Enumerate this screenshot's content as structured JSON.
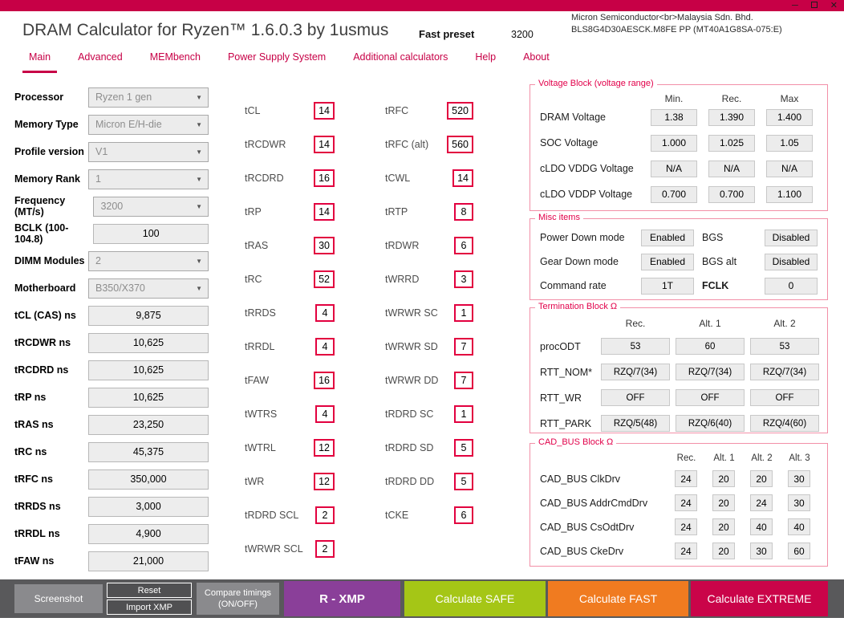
{
  "colors": {
    "accent": "#c70046",
    "timing_border": "#e2003f",
    "xmp_purple": "#8a3f99",
    "safe_green": "#a5c616",
    "fast_orange": "#f07b20",
    "extreme_crimson": "#ca0449"
  },
  "window": {
    "title": "DRAM Calculator for Ryzen™ 1.6.0.3 by 1usmus",
    "preset_label": "Fast preset",
    "preset_freq": "3200",
    "mem_line1": "Micron Semiconductor<br>Malaysia Sdn. Bhd.",
    "mem_line2": "BLS8G4D30AESCK.M8FE PP (MT40A1G8SA-075:E)"
  },
  "nav": {
    "items": [
      {
        "label": "Main"
      },
      {
        "label": "Advanced"
      },
      {
        "label": "MEMbench"
      },
      {
        "label": "Power Supply System"
      },
      {
        "label": "Additional calculators"
      },
      {
        "label": "Help"
      },
      {
        "label": "About"
      }
    ]
  },
  "left": {
    "rows": [
      {
        "label": "Processor",
        "value": "Ryzen 1 gen"
      },
      {
        "label": "Memory Type",
        "value": "Micron E/H-die"
      },
      {
        "label": "Profile version",
        "value": "V1"
      },
      {
        "label": "Memory Rank",
        "value": "1"
      },
      {
        "label": "Frequency (MT/s)",
        "value": "3200"
      },
      {
        "label": "BCLK (100-104.8)",
        "value": "100"
      },
      {
        "label": "DIMM Modules",
        "value": "2"
      },
      {
        "label": "Motherboard",
        "value": "B350/X370"
      },
      {
        "label": "tCL (CAS) ns",
        "value": "9,875"
      },
      {
        "label": "tRCDWR ns",
        "value": "10,625"
      },
      {
        "label": "tRCDRD ns",
        "value": "10,625"
      },
      {
        "label": "tRP ns",
        "value": "10,625"
      },
      {
        "label": "tRAS ns",
        "value": "23,250"
      },
      {
        "label": "tRC ns",
        "value": "45,375"
      },
      {
        "label": "tRFC ns",
        "value": "350,000"
      },
      {
        "label": "tRRDS ns",
        "value": "3,000"
      },
      {
        "label": "tRRDL ns",
        "value": "4,900"
      },
      {
        "label": "tFAW ns",
        "value": "21,000"
      }
    ]
  },
  "timings1": [
    {
      "label": "tCL",
      "value": "14"
    },
    {
      "label": "tRCDWR",
      "value": "14"
    },
    {
      "label": "tRCDRD",
      "value": "16"
    },
    {
      "label": "tRP",
      "value": "14"
    },
    {
      "label": "tRAS",
      "value": "30"
    },
    {
      "label": "tRC",
      "value": "52"
    },
    {
      "label": "tRRDS",
      "value": "4"
    },
    {
      "label": "tRRDL",
      "value": "4"
    },
    {
      "label": "tFAW",
      "value": "16"
    },
    {
      "label": "tWTRS",
      "value": "4"
    },
    {
      "label": "tWTRL",
      "value": "12"
    },
    {
      "label": "tWR",
      "value": "12"
    },
    {
      "label": "tRDRD SCL",
      "value": "2"
    },
    {
      "label": "tWRWR SCL",
      "value": "2"
    }
  ],
  "timings2": [
    {
      "label": "tRFC",
      "value": "520"
    },
    {
      "label": "tRFC (alt)",
      "value": "560"
    },
    {
      "label": "tCWL",
      "value": "14"
    },
    {
      "label": "tRTP",
      "value": "8"
    },
    {
      "label": "tRDWR",
      "value": "6"
    },
    {
      "label": "tWRRD",
      "value": "3"
    },
    {
      "label": "tWRWR SC",
      "value": "1"
    },
    {
      "label": "tWRWR SD",
      "value": "7"
    },
    {
      "label": "tWRWR DD",
      "value": "7"
    },
    {
      "label": "tRDRD SC",
      "value": "1"
    },
    {
      "label": "tRDRD SD",
      "value": "5"
    },
    {
      "label": "tRDRD DD",
      "value": "5"
    },
    {
      "label": "tCKE",
      "value": "6"
    }
  ],
  "voltage": {
    "title": "Voltage Block (voltage range)",
    "headers": [
      "Min.",
      "Rec.",
      "Max"
    ],
    "rows": [
      {
        "label": "DRAM Voltage",
        "v": [
          "1.38",
          "1.390",
          "1.400"
        ]
      },
      {
        "label": "SOC Voltage",
        "v": [
          "1.000",
          "1.025",
          "1.05"
        ]
      },
      {
        "label": "cLDO VDDG Voltage",
        "v": [
          "N/A",
          "N/A",
          "N/A"
        ]
      },
      {
        "label": "cLDO VDDP Voltage",
        "v": [
          "0.700",
          "0.700",
          "1.100"
        ]
      }
    ]
  },
  "misc": {
    "title": "Misc items",
    "rows": [
      {
        "l1": "Power Down mode",
        "v1": "Enabled",
        "l2": "BGS",
        "v2": "Disabled"
      },
      {
        "l1": "Gear Down mode",
        "v1": "Enabled",
        "l2": "BGS alt",
        "v2": "Disabled"
      },
      {
        "l1": "Command rate",
        "v1": "1T",
        "l2": "FCLK",
        "v2": "0"
      }
    ]
  },
  "termination": {
    "title": "Termination Block Ω",
    "headers": [
      "Rec.",
      "Alt. 1",
      "Alt. 2"
    ],
    "rows": [
      {
        "label": "procODT",
        "v": [
          "53",
          "60",
          "53"
        ]
      },
      {
        "label": "RTT_NOM*",
        "v": [
          "RZQ/7(34)",
          "RZQ/7(34)",
          "RZQ/7(34)"
        ]
      },
      {
        "label": "RTT_WR",
        "v": [
          "OFF",
          "OFF",
          "OFF"
        ]
      },
      {
        "label": "RTT_PARK",
        "v": [
          "RZQ/5(48)",
          "RZQ/6(40)",
          "RZQ/4(60)"
        ]
      }
    ]
  },
  "cadbus": {
    "title": "CAD_BUS Block Ω",
    "headers": [
      "Rec.",
      "Alt. 1",
      "Alt. 2",
      "Alt. 3"
    ],
    "rows": [
      {
        "label": "CAD_BUS ClkDrv",
        "v": [
          "24",
          "20",
          "20",
          "30"
        ]
      },
      {
        "label": "CAD_BUS AddrCmdDrv",
        "v": [
          "24",
          "20",
          "24",
          "30"
        ]
      },
      {
        "label": "CAD_BUS CsOdtDrv",
        "v": [
          "24",
          "20",
          "40",
          "40"
        ]
      },
      {
        "label": "CAD_BUS CkeDrv",
        "v": [
          "24",
          "20",
          "30",
          "60"
        ]
      }
    ]
  },
  "bottom": {
    "screenshot": "Screenshot",
    "reset": "Reset",
    "import_xmp": "Import XMP",
    "compare1": "Compare timings",
    "compare2": "(ON/OFF)",
    "r_xmp": "R - XMP",
    "safe": "Calculate SAFE",
    "fast": "Calculate FAST",
    "extreme": "Calculate EXTREME"
  }
}
